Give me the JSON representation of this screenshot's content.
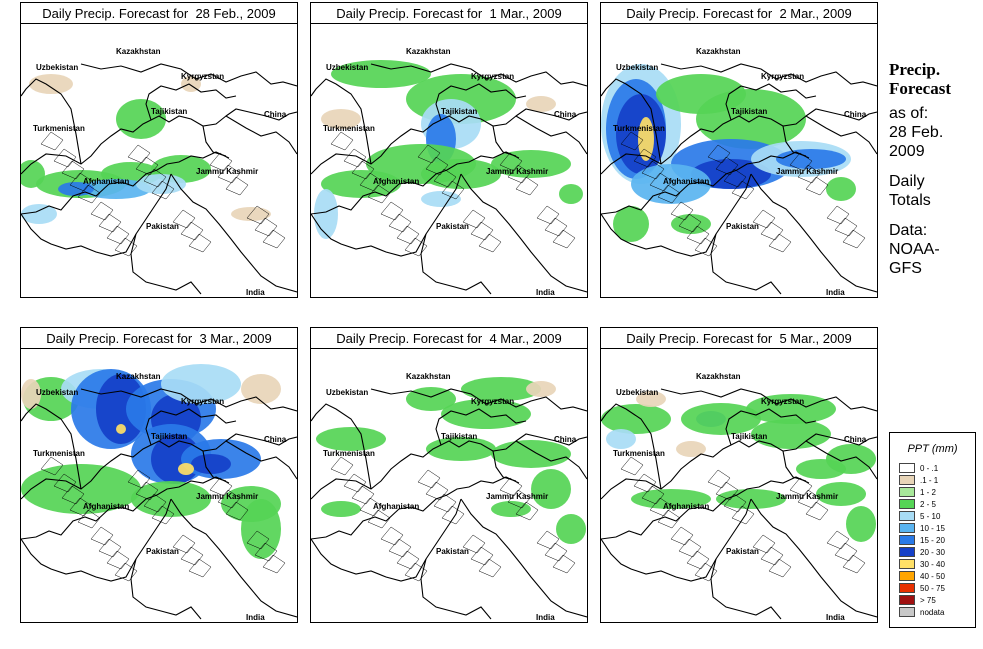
{
  "panels": [
    {
      "title": "Daily Precip. Forecast for  28 Feb., 2009",
      "intensity": "p1"
    },
    {
      "title": "Daily Precip. Forecast for  1 Mar., 2009",
      "intensity": "p2"
    },
    {
      "title": "Daily Precip. Forecast for  2 Mar., 2009",
      "intensity": "p3"
    },
    {
      "title": "Daily Precip. Forecast for  3 Mar., 2009",
      "intensity": "p4"
    },
    {
      "title": "Daily Precip. Forecast for  4 Mar., 2009",
      "intensity": "p5"
    },
    {
      "title": "Daily Precip. Forecast for  5 Mar., 2009",
      "intensity": "p6"
    }
  ],
  "map_labels": {
    "kazakhstan": "Kazakhstan",
    "uzbekistan": "Uzbekistan",
    "kyrgyzstan": "Kyrgyzstan",
    "tajikistan": "Tajikistan",
    "turkmenistan": "Turkmenistan",
    "china": "China",
    "jammu_kashmir": "Jammu Kashmir",
    "afghanistan": "Afghanistan",
    "pakistan": "Pakistan",
    "india": "India"
  },
  "sidebar": {
    "heading_line1": "Precip.",
    "heading_line2": "Forecast",
    "asof_line1": "as of:",
    "asof_line2": "28 Feb.",
    "asof_line3": "2009",
    "type_line1": "Daily",
    "type_line2": "Totals",
    "source_line1": "Data:",
    "source_line2": "NOAA-",
    "source_line3": "GFS"
  },
  "legend": {
    "title": "PPT (mm)",
    "classes": [
      {
        "label": "0 - .1",
        "color": "#ffffff"
      },
      {
        "label": ".1 - 1",
        "color": "#e8d5b8"
      },
      {
        "label": "1 - 2",
        "color": "#a8e89a"
      },
      {
        "label": "2 - 5",
        "color": "#55d455"
      },
      {
        "label": "5 - 10",
        "color": "#a8dcf5"
      },
      {
        "label": "10 - 15",
        "color": "#5ab4f0"
      },
      {
        "label": "15 - 20",
        "color": "#2a7ae8"
      },
      {
        "label": "20 - 30",
        "color": "#1540c8"
      },
      {
        "label": "30 - 40",
        "color": "#ffe066"
      },
      {
        "label": "40 - 50",
        "color": "#ffa500"
      },
      {
        "label": "50 - 75",
        "color": "#e83000"
      },
      {
        "label": "> 75",
        "color": "#a01010"
      },
      {
        "label": "nodata",
        "color": "#c8c8c8"
      }
    ]
  }
}
